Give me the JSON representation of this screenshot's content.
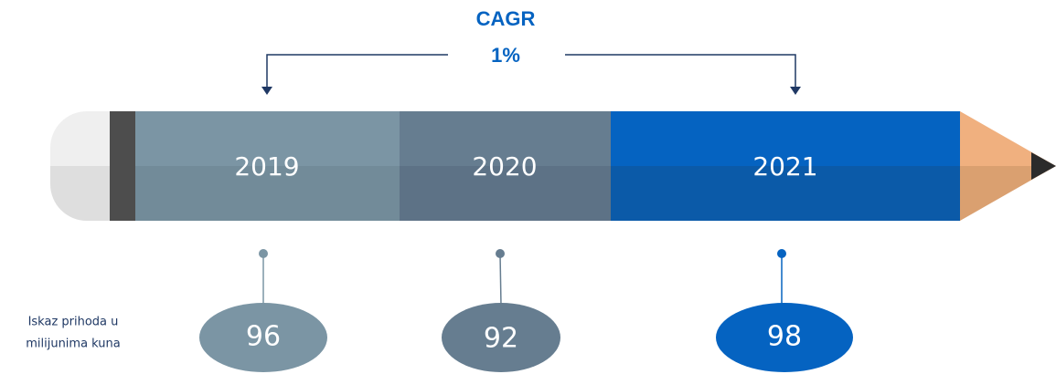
{
  "header": {
    "title": "CAGR",
    "value": "1%"
  },
  "segments": [
    {
      "year": "2019",
      "value": 96
    },
    {
      "year": "2020",
      "value": 92
    },
    {
      "year": "2021",
      "value": 98
    }
  ],
  "note": [
    "Iskaz prihoda u",
    "milijunima kuna"
  ]
}
